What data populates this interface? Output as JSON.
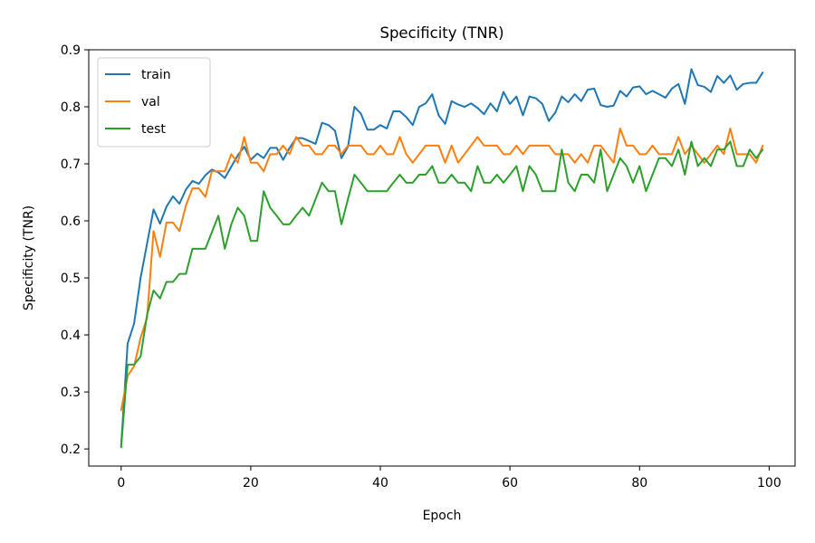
{
  "chart_data": {
    "type": "line",
    "title": "Specificity (TNR)",
    "xlabel": "Epoch",
    "ylabel": "Specificity (TNR)",
    "xlim": [
      -5,
      104
    ],
    "ylim": [
      0.17,
      0.9
    ],
    "xticks": [
      0,
      20,
      40,
      60,
      80,
      100
    ],
    "yticks": [
      0.2,
      0.3,
      0.4,
      0.5,
      0.6,
      0.7,
      0.8,
      0.9
    ],
    "xtick_labels": [
      "0",
      "20",
      "40",
      "60",
      "80",
      "100"
    ],
    "ytick_labels": [
      "0.2",
      "0.3",
      "0.4",
      "0.5",
      "0.6",
      "0.7",
      "0.8",
      "0.9"
    ],
    "grid": false,
    "legend_position": "top-left",
    "x": [
      0,
      1,
      2,
      3,
      4,
      5,
      6,
      7,
      8,
      9,
      10,
      11,
      12,
      13,
      14,
      15,
      16,
      17,
      18,
      19,
      20,
      21,
      22,
      23,
      24,
      25,
      26,
      27,
      28,
      29,
      30,
      31,
      32,
      33,
      34,
      35,
      36,
      37,
      38,
      39,
      40,
      41,
      42,
      43,
      44,
      45,
      46,
      47,
      48,
      49,
      50,
      51,
      52,
      53,
      54,
      55,
      56,
      57,
      58,
      59,
      60,
      61,
      62,
      63,
      64,
      65,
      66,
      67,
      68,
      69,
      70,
      71,
      72,
      73,
      74,
      75,
      76,
      77,
      78,
      79,
      80,
      81,
      82,
      83,
      84,
      85,
      86,
      87,
      88,
      89,
      90,
      91,
      92,
      93,
      94,
      95,
      96,
      97,
      98,
      99
    ],
    "series": [
      {
        "name": "train",
        "color": "#1f77b4",
        "values": [
          0.205,
          0.385,
          0.42,
          0.5,
          0.56,
          0.62,
          0.595,
          0.625,
          0.643,
          0.63,
          0.655,
          0.67,
          0.665,
          0.68,
          0.69,
          0.685,
          0.675,
          0.695,
          0.715,
          0.73,
          0.707,
          0.718,
          0.71,
          0.728,
          0.728,
          0.707,
          0.728,
          0.745,
          0.745,
          0.74,
          0.735,
          0.772,
          0.768,
          0.758,
          0.71,
          0.73,
          0.8,
          0.788,
          0.76,
          0.76,
          0.768,
          0.762,
          0.792,
          0.792,
          0.782,
          0.768,
          0.8,
          0.806,
          0.822,
          0.785,
          0.77,
          0.81,
          0.804,
          0.8,
          0.806,
          0.798,
          0.787,
          0.806,
          0.792,
          0.826,
          0.805,
          0.818,
          0.785,
          0.818,
          0.815,
          0.805,
          0.775,
          0.79,
          0.818,
          0.808,
          0.822,
          0.81,
          0.83,
          0.832,
          0.803,
          0.8,
          0.802,
          0.828,
          0.818,
          0.834,
          0.836,
          0.822,
          0.828,
          0.822,
          0.816,
          0.832,
          0.84,
          0.805,
          0.866,
          0.838,
          0.835,
          0.826,
          0.854,
          0.842,
          0.855,
          0.83,
          0.84,
          0.842,
          0.842,
          0.86
        ]
      },
      {
        "name": "val",
        "color": "#ff7f0e",
        "values": [
          0.268,
          0.328,
          0.345,
          0.395,
          0.43,
          0.582,
          0.537,
          0.597,
          0.597,
          0.582,
          0.627,
          0.657,
          0.657,
          0.642,
          0.687,
          0.687,
          0.687,
          0.717,
          0.702,
          0.747,
          0.702,
          0.702,
          0.687,
          0.717,
          0.717,
          0.732,
          0.717,
          0.747,
          0.732,
          0.732,
          0.717,
          0.717,
          0.732,
          0.732,
          0.717,
          0.732,
          0.732,
          0.732,
          0.717,
          0.717,
          0.732,
          0.717,
          0.717,
          0.747,
          0.717,
          0.702,
          0.717,
          0.732,
          0.732,
          0.732,
          0.702,
          0.732,
          0.702,
          0.717,
          0.732,
          0.747,
          0.732,
          0.732,
          0.732,
          0.717,
          0.717,
          0.732,
          0.717,
          0.732,
          0.732,
          0.732,
          0.732,
          0.717,
          0.717,
          0.717,
          0.702,
          0.717,
          0.702,
          0.732,
          0.732,
          0.717,
          0.702,
          0.762,
          0.732,
          0.732,
          0.717,
          0.717,
          0.732,
          0.717,
          0.717,
          0.717,
          0.747,
          0.717,
          0.732,
          0.717,
          0.702,
          0.717,
          0.732,
          0.717,
          0.762,
          0.717,
          0.717,
          0.717,
          0.702,
          0.732
        ]
      },
      {
        "name": "test",
        "color": "#2ca02c",
        "values": [
          0.203,
          0.348,
          0.348,
          0.362,
          0.435,
          0.478,
          0.464,
          0.493,
          0.493,
          0.507,
          0.507,
          0.551,
          0.551,
          0.551,
          0.58,
          0.609,
          0.551,
          0.594,
          0.623,
          0.609,
          0.565,
          0.565,
          0.652,
          0.623,
          0.609,
          0.594,
          0.594,
          0.609,
          0.623,
          0.609,
          0.638,
          0.667,
          0.652,
          0.652,
          0.594,
          0.638,
          0.681,
          0.667,
          0.652,
          0.652,
          0.652,
          0.652,
          0.667,
          0.681,
          0.667,
          0.667,
          0.681,
          0.681,
          0.696,
          0.667,
          0.667,
          0.681,
          0.667,
          0.667,
          0.652,
          0.696,
          0.667,
          0.667,
          0.681,
          0.667,
          0.681,
          0.696,
          0.652,
          0.696,
          0.681,
          0.652,
          0.652,
          0.652,
          0.725,
          0.667,
          0.652,
          0.681,
          0.681,
          0.667,
          0.725,
          0.652,
          0.681,
          0.71,
          0.696,
          0.667,
          0.696,
          0.652,
          0.681,
          0.71,
          0.71,
          0.696,
          0.725,
          0.681,
          0.739,
          0.696,
          0.71,
          0.696,
          0.725,
          0.725,
          0.739,
          0.696,
          0.696,
          0.725,
          0.71,
          0.725
        ]
      }
    ]
  }
}
